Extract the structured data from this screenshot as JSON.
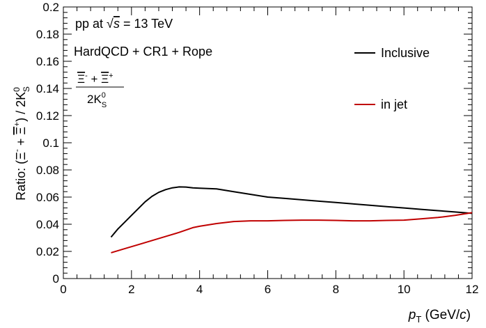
{
  "chart_data": {
    "type": "line",
    "xlabel": "p_T (GeV/c)",
    "ylabel": "Ratio: (Ξ⁻ + Ξ̄⁺) / 2K⁰S",
    "xlim": [
      0,
      12
    ],
    "ylim": [
      0,
      0.2
    ],
    "grid": false,
    "legend_position": "right",
    "x_ticks": [
      "0",
      "2",
      "4",
      "6",
      "8",
      "10",
      "12"
    ],
    "y_ticks": [
      "0",
      "0.02",
      "0.04",
      "0.06",
      "0.08",
      "0.1",
      "0.12",
      "0.14",
      "0.16",
      "0.18",
      "0.2"
    ],
    "series": [
      {
        "name": "Inclusive",
        "color": "#000000",
        "x": [
          1.4,
          1.6,
          1.8,
          2.0,
          2.2,
          2.4,
          2.6,
          2.8,
          3.0,
          3.2,
          3.4,
          3.6,
          3.8,
          4.0,
          4.5,
          5.0,
          5.5,
          6.0,
          6.5,
          7.0,
          7.5,
          8.0,
          8.5,
          9.0,
          9.5,
          10.0,
          10.5,
          11.0,
          11.5,
          12.0
        ],
        "y": [
          0.0305,
          0.0365,
          0.0415,
          0.0465,
          0.0515,
          0.0565,
          0.0605,
          0.0635,
          0.0655,
          0.0668,
          0.0675,
          0.0674,
          0.0668,
          0.0665,
          0.066,
          0.064,
          0.062,
          0.06,
          0.059,
          0.058,
          0.057,
          0.056,
          0.055,
          0.054,
          0.053,
          0.052,
          0.051,
          0.05,
          0.049,
          0.048
        ]
      },
      {
        "name": "in jet",
        "color": "#c00000",
        "x": [
          1.4,
          1.8,
          2.2,
          2.6,
          3.0,
          3.4,
          3.8,
          4.0,
          4.5,
          5.0,
          5.5,
          6.0,
          6.5,
          7.0,
          7.5,
          8.0,
          8.5,
          9.0,
          9.5,
          10.0,
          10.5,
          11.0,
          11.5,
          12.0
        ],
        "y": [
          0.019,
          0.022,
          0.025,
          0.028,
          0.031,
          0.034,
          0.0375,
          0.0385,
          0.0405,
          0.042,
          0.0425,
          0.0425,
          0.0428,
          0.043,
          0.043,
          0.0428,
          0.0425,
          0.0425,
          0.0428,
          0.043,
          0.044,
          0.045,
          0.0465,
          0.0485
        ]
      }
    ],
    "annotations": {
      "energy": "pp at √s = 13 TeV",
      "model": "HardQCD + CR1 + Rope",
      "ratio_numerator": "Ξ⁻ + Ξ̄⁺",
      "ratio_denominator": "2K⁰S"
    }
  }
}
